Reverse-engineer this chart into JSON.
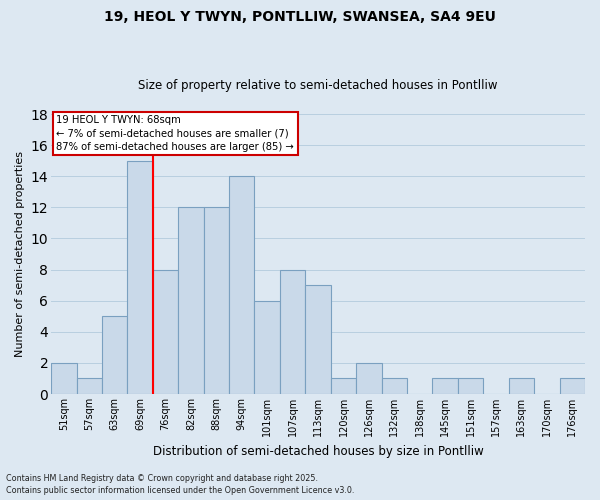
{
  "title": "19, HEOL Y TWYN, PONTLLIW, SWANSEA, SA4 9EU",
  "subtitle": "Size of property relative to semi-detached houses in Pontlliw",
  "xlabel": "Distribution of semi-detached houses by size in Pontlliw",
  "ylabel": "Number of semi-detached properties",
  "bar_labels": [
    "51sqm",
    "57sqm",
    "63sqm",
    "69sqm",
    "76sqm",
    "82sqm",
    "88sqm",
    "94sqm",
    "101sqm",
    "107sqm",
    "113sqm",
    "120sqm",
    "126sqm",
    "132sqm",
    "138sqm",
    "145sqm",
    "151sqm",
    "157sqm",
    "163sqm",
    "170sqm",
    "176sqm"
  ],
  "bar_values": [
    2,
    1,
    5,
    15,
    8,
    12,
    12,
    14,
    6,
    8,
    7,
    1,
    2,
    1,
    0,
    1,
    1,
    0,
    1,
    0,
    1
  ],
  "bar_color": "#c9d9e9",
  "bar_edge_color": "#7aa0c0",
  "grid_color": "#b8cfe0",
  "bg_color": "#dde8f2",
  "vline_x": 3.5,
  "vline_color": "red",
  "annotation_text_line1": "19 HEOL Y TWYN: 68sqm",
  "annotation_text_line2": "← 7% of semi-detached houses are smaller (7)",
  "annotation_text_line3": "87% of semi-detached houses are larger (85) →",
  "annotation_box_color": "white",
  "annotation_box_edge_color": "#cc0000",
  "ylim": [
    0,
    18
  ],
  "yticks": [
    0,
    2,
    4,
    6,
    8,
    10,
    12,
    14,
    16,
    18
  ],
  "title_fontsize": 10,
  "subtitle_fontsize": 8.5,
  "xlabel_fontsize": 8.5,
  "ylabel_fontsize": 8,
  "tick_fontsize": 7,
  "footer_line1": "Contains HM Land Registry data © Crown copyright and database right 2025.",
  "footer_line2": "Contains public sector information licensed under the Open Government Licence v3.0."
}
